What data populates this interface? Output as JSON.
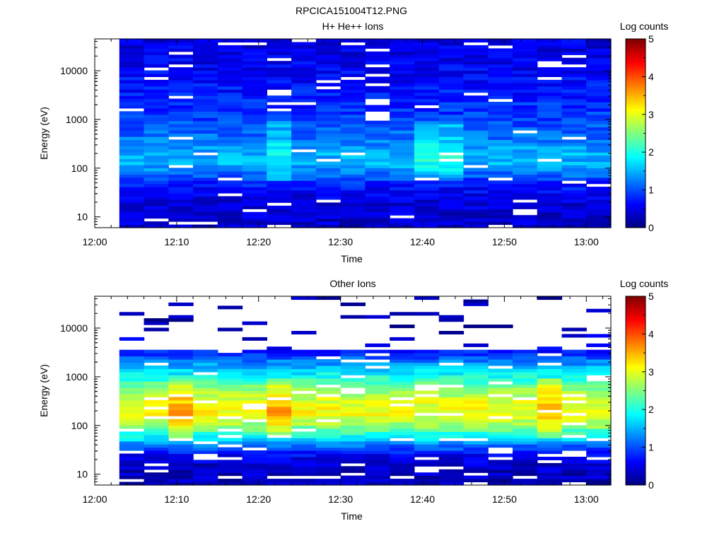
{
  "figure_title": "RPCICA151004T12.PNG",
  "chart_data": [
    {
      "type": "heatmap",
      "title": "H+ He++ Ions",
      "xlabel": "Time",
      "ylabel": "Energy (eV)",
      "x_ticks": [
        "12:00",
        "12:10",
        "12:20",
        "12:30",
        "12:40",
        "12:50",
        "13:00"
      ],
      "xlim": [
        "12:00",
        "13:03"
      ],
      "y_scale": "log",
      "y_ticks": [
        10,
        100,
        1000,
        10000
      ],
      "ylim": [
        6,
        45000
      ],
      "time_bins": [
        "12:03",
        "12:06",
        "12:09",
        "12:12",
        "12:15",
        "12:18",
        "12:21",
        "12:24",
        "12:27",
        "12:30",
        "12:33",
        "12:36",
        "12:39",
        "12:42",
        "12:45",
        "12:48",
        "12:51",
        "12:54",
        "12:57",
        "13:00"
      ],
      "data_start_time": "12:03",
      "data_end_time": "13:00",
      "colorbar": {
        "label": "Log counts",
        "ticks": [
          0,
          1,
          2,
          3,
          4,
          5
        ],
        "range": [
          0,
          5
        ],
        "colormap": "jet"
      },
      "log_counts_profile": {
        "energy_eV": [
          10,
          20,
          30,
          50,
          80,
          120,
          200,
          400,
          1000,
          3000,
          10000,
          30000
        ],
        "log_counts": [
          0.4,
          0.45,
          0.55,
          0.8,
          1.2,
          1.5,
          1.5,
          1.2,
          0.95,
          0.75,
          0.6,
          0.5
        ]
      },
      "empty_fraction": 0.06,
      "notes_peak_bins": [
        "12:21",
        "12:39",
        "12:42"
      ]
    },
    {
      "type": "heatmap",
      "title": "Other Ions",
      "xlabel": "Time",
      "ylabel": "Energy (eV)",
      "x_ticks": [
        "12:00",
        "12:10",
        "12:20",
        "12:30",
        "12:40",
        "12:50",
        "13:00"
      ],
      "xlim": [
        "12:00",
        "13:03"
      ],
      "y_scale": "log",
      "y_ticks": [
        10,
        100,
        1000,
        10000
      ],
      "ylim": [
        6,
        45000
      ],
      "time_bins": [
        "12:03",
        "12:06",
        "12:09",
        "12:12",
        "12:15",
        "12:18",
        "12:21",
        "12:24",
        "12:27",
        "12:30",
        "12:33",
        "12:36",
        "12:39",
        "12:42",
        "12:45",
        "12:48",
        "12:51",
        "12:54",
        "12:57",
        "13:00"
      ],
      "data_start_time": "12:03",
      "data_end_time": "13:00",
      "colorbar": {
        "label": "Log counts",
        "ticks": [
          0,
          1,
          2,
          3,
          4,
          5
        ],
        "range": [
          0,
          5
        ],
        "colormap": "jet"
      },
      "log_counts_profile": {
        "energy_eV": [
          8,
          15,
          25,
          40,
          60,
          100,
          180,
          300,
          600,
          1000,
          2000,
          3000,
          10000,
          30000
        ],
        "log_counts": [
          0.3,
          0.35,
          0.6,
          1.2,
          1.9,
          2.6,
          3.1,
          3.0,
          2.5,
          2.0,
          1.3,
          0.8,
          0.2,
          0.2
        ]
      },
      "empty_fraction": 0.12,
      "notes_peak_bins": [
        "12:09",
        "12:21",
        "12:54"
      ]
    }
  ]
}
